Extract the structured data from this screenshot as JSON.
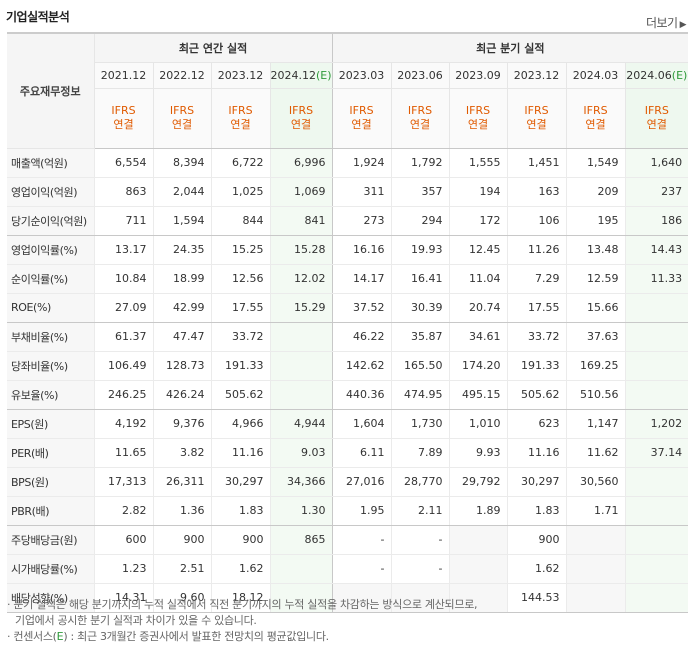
{
  "title": "기업실적분석",
  "more_label": "더보기",
  "header": {
    "corner_label": "주요재무정보",
    "annual_group": "최근 연간 실적",
    "quarter_group": "최근 분기 실적",
    "columns": [
      {
        "period": "2021.12",
        "est": "",
        "std1": "IFRS",
        "std2": "연결"
      },
      {
        "period": "2022.12",
        "est": "",
        "std1": "IFRS",
        "std2": "연결"
      },
      {
        "period": "2023.12",
        "est": "",
        "std1": "IFRS",
        "std2": "연결"
      },
      {
        "period": "2024.12",
        "est": "(E)",
        "std1": "IFRS",
        "std2": "연결"
      },
      {
        "period": "2023.03",
        "est": "",
        "std1": "IFRS",
        "std2": "연결"
      },
      {
        "period": "2023.06",
        "est": "",
        "std1": "IFRS",
        "std2": "연결"
      },
      {
        "period": "2023.09",
        "est": "",
        "std1": "IFRS",
        "std2": "연결"
      },
      {
        "period": "2023.12",
        "est": "",
        "std1": "IFRS",
        "std2": "연결"
      },
      {
        "period": "2024.03",
        "est": "",
        "std1": "IFRS",
        "std2": "연결"
      },
      {
        "period": "2024.06",
        "est": "(E)",
        "std1": "IFRS",
        "std2": "연결"
      }
    ]
  },
  "rows": [
    {
      "label": "매출액(억원)",
      "values": [
        "6,554",
        "8,394",
        "6,722",
        "6,996",
        "1,924",
        "1,792",
        "1,555",
        "1,451",
        "1,549",
        "1,640"
      ]
    },
    {
      "label": "영업이익(억원)",
      "values": [
        "863",
        "2,044",
        "1,025",
        "1,069",
        "311",
        "357",
        "194",
        "163",
        "209",
        "237"
      ]
    },
    {
      "label": "당기순이익(억원)",
      "values": [
        "711",
        "1,594",
        "844",
        "841",
        "273",
        "294",
        "172",
        "106",
        "195",
        "186"
      ]
    },
    {
      "label": "영업이익률(%)",
      "values": [
        "13.17",
        "24.35",
        "15.25",
        "15.28",
        "16.16",
        "19.93",
        "12.45",
        "11.26",
        "13.48",
        "14.43"
      ]
    },
    {
      "label": "순이익률(%)",
      "values": [
        "10.84",
        "18.99",
        "12.56",
        "12.02",
        "14.17",
        "16.41",
        "11.04",
        "7.29",
        "12.59",
        "11.33"
      ]
    },
    {
      "label": "ROE(%)",
      "values": [
        "27.09",
        "42.99",
        "17.55",
        "15.29",
        "37.52",
        "30.39",
        "20.74",
        "17.55",
        "15.66",
        ""
      ]
    },
    {
      "label": "부채비율(%)",
      "values": [
        "61.37",
        "47.47",
        "33.72",
        "",
        "46.22",
        "35.87",
        "34.61",
        "33.72",
        "37.63",
        ""
      ]
    },
    {
      "label": "당좌비율(%)",
      "values": [
        "106.49",
        "128.73",
        "191.33",
        "",
        "142.62",
        "165.50",
        "174.20",
        "191.33",
        "169.25",
        ""
      ]
    },
    {
      "label": "유보율(%)",
      "values": [
        "246.25",
        "426.24",
        "505.62",
        "",
        "440.36",
        "474.95",
        "495.15",
        "505.62",
        "510.56",
        ""
      ]
    },
    {
      "label": "EPS(원)",
      "values": [
        "4,192",
        "9,376",
        "4,966",
        "4,944",
        "1,604",
        "1,730",
        "1,010",
        "623",
        "1,147",
        "1,202"
      ]
    },
    {
      "label": "PER(배)",
      "values": [
        "11.65",
        "3.82",
        "11.16",
        "9.03",
        "6.11",
        "7.89",
        "9.93",
        "11.16",
        "11.62",
        "37.14"
      ]
    },
    {
      "label": "BPS(원)",
      "values": [
        "17,313",
        "26,311",
        "30,297",
        "34,366",
        "27,016",
        "28,770",
        "29,792",
        "30,297",
        "30,560",
        ""
      ]
    },
    {
      "label": "PBR(배)",
      "values": [
        "2.82",
        "1.36",
        "1.83",
        "1.30",
        "1.95",
        "2.11",
        "1.89",
        "1.83",
        "1.71",
        ""
      ]
    },
    {
      "label": "주당배당금(원)",
      "values": [
        "600",
        "900",
        "900",
        "865",
        "-",
        "-",
        "",
        "900",
        "",
        ""
      ]
    },
    {
      "label": "시가배당률(%)",
      "values": [
        "1.23",
        "2.51",
        "1.62",
        "",
        "-",
        "-",
        "",
        "1.62",
        "",
        ""
      ]
    },
    {
      "label": "배당성향(%)",
      "values": [
        "14.31",
        "9.60",
        "18.12",
        "",
        "",
        "",
        "",
        "144.53",
        "",
        ""
      ]
    }
  ],
  "notes": {
    "line1": "· 분기 실적은 해당 분기까지의 누적 실적에서 직전 분기까지의 누적 실적을 차감하는 방식으로 계산되므로,",
    "line2": "  기업에서 공시한 분기 실적과 차이가 있을 수 있습니다.",
    "line3_pre": "· 컨센서스(",
    "line3_e": "E",
    "line3_post": ") : 최근 3개월간 증권사에서 발표한 전망치의 평균값입니다."
  }
}
